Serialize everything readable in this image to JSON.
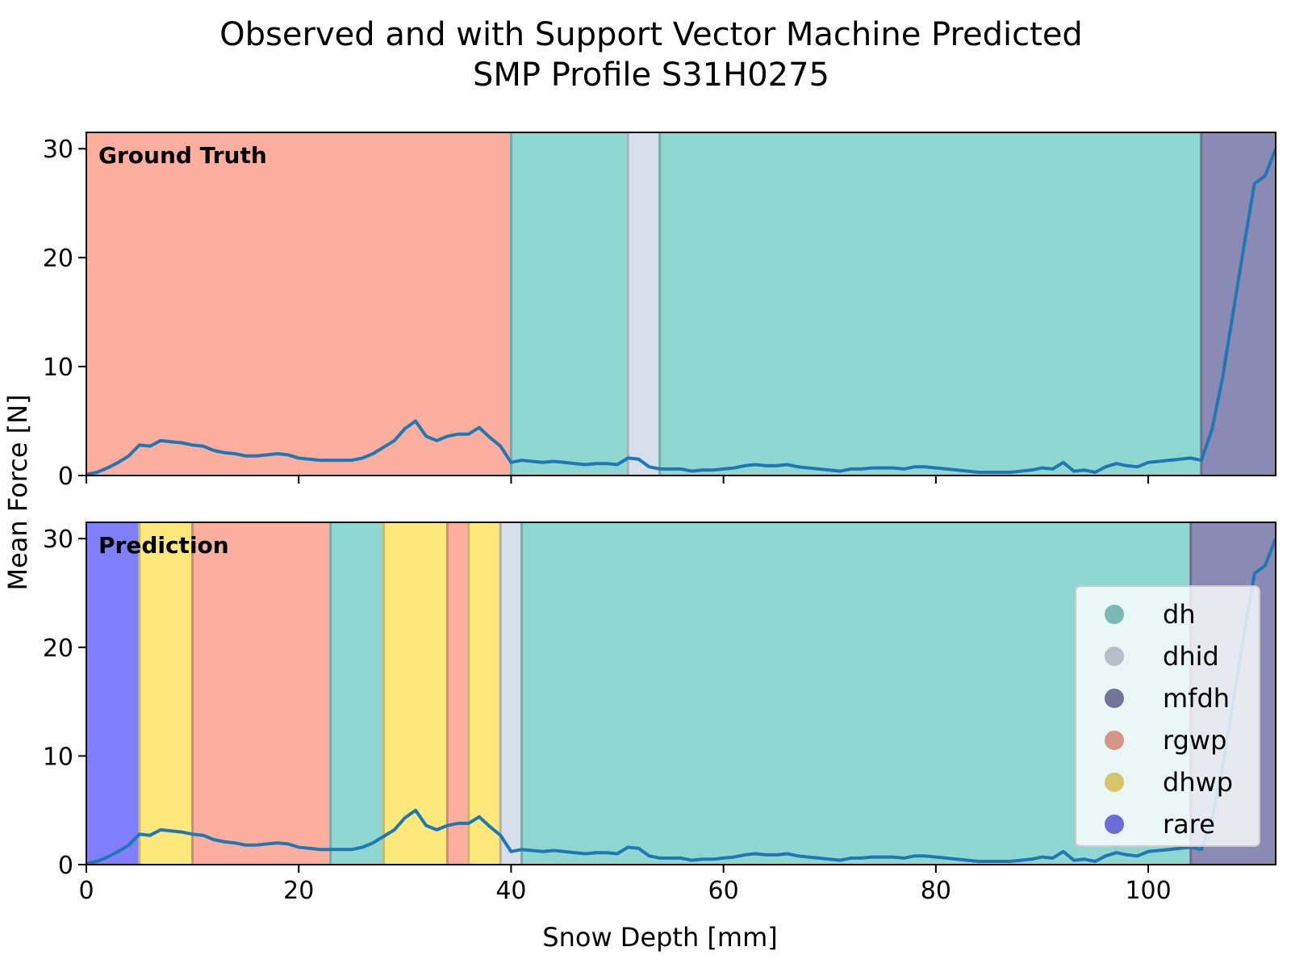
{
  "chart_data": {
    "type": "line",
    "title_line1": "Observed and with Support Vector Machine Predicted",
    "title_line2": "SMP Profile S31H0275",
    "xlabel": "Snow Depth [mm]",
    "ylabel": "Mean Force [N]",
    "xlim": [
      0,
      112
    ],
    "ylim": [
      0,
      31.5
    ],
    "xticks": [
      0,
      20,
      40,
      60,
      80,
      100
    ],
    "yticks": [
      0,
      10,
      20,
      30
    ],
    "xtick_labels": [
      "0",
      "20",
      "40",
      "60",
      "80",
      "100"
    ],
    "ytick_labels": [
      "0",
      "10",
      "20",
      "30"
    ],
    "line_color": "#1f77b4",
    "classes": [
      {
        "name": "dh",
        "color": "#8fd8d2"
      },
      {
        "name": "dhid",
        "color": "#d6dfea"
      },
      {
        "name": "mfdh",
        "color": "#8a8ab5"
      },
      {
        "name": "rgwp",
        "color": "#fcaf9e"
      },
      {
        "name": "dhwp",
        "color": "#fde87c"
      },
      {
        "name": "rare",
        "color": "#8080ff"
      }
    ],
    "legend_placement": "lower-right",
    "panels": [
      {
        "label": "Ground Truth",
        "segments": [
          {
            "start": 0,
            "end": 40,
            "cls": "rgwp"
          },
          {
            "start": 40,
            "end": 51,
            "cls": "dh"
          },
          {
            "start": 51,
            "end": 54,
            "cls": "dhid"
          },
          {
            "start": 54,
            "end": 105,
            "cls": "dh"
          },
          {
            "start": 105,
            "end": 112,
            "cls": "mfdh"
          }
        ]
      },
      {
        "label": "Prediction",
        "segments": [
          {
            "start": 0,
            "end": 5,
            "cls": "rare"
          },
          {
            "start": 5,
            "end": 10,
            "cls": "dhwp"
          },
          {
            "start": 10,
            "end": 23,
            "cls": "rgwp"
          },
          {
            "start": 23,
            "end": 28,
            "cls": "dh"
          },
          {
            "start": 28,
            "end": 34,
            "cls": "dhwp"
          },
          {
            "start": 34,
            "end": 36,
            "cls": "rgwp"
          },
          {
            "start": 36,
            "end": 39,
            "cls": "dhwp"
          },
          {
            "start": 39,
            "end": 41,
            "cls": "dhid"
          },
          {
            "start": 41,
            "end": 104,
            "cls": "dh"
          },
          {
            "start": 104,
            "end": 112,
            "cls": "mfdh"
          }
        ]
      }
    ],
    "series": [
      {
        "x": [
          0,
          1,
          2,
          3,
          4,
          5,
          6,
          7,
          8,
          9,
          10,
          11,
          12,
          13,
          14,
          15,
          16,
          17,
          18,
          19,
          20,
          21,
          22,
          23,
          24,
          25,
          26,
          27,
          28,
          29,
          30,
          31,
          32,
          33,
          34,
          35,
          36,
          37,
          38,
          39,
          40,
          41,
          42,
          43,
          44,
          45,
          46,
          47,
          48,
          49,
          50,
          51,
          52,
          53,
          54,
          55,
          56,
          57,
          58,
          59,
          60,
          61,
          62,
          63,
          64,
          65,
          66,
          67,
          68,
          69,
          70,
          71,
          72,
          73,
          74,
          75,
          76,
          77,
          78,
          79,
          80,
          81,
          82,
          83,
          84,
          85,
          86,
          87,
          88,
          89,
          90,
          91,
          92,
          93,
          94,
          95,
          96,
          97,
          98,
          99,
          100,
          101,
          102,
          103,
          104,
          105,
          106,
          107,
          108,
          109,
          110,
          111,
          112
        ],
        "y": [
          0.1,
          0.3,
          0.7,
          1.2,
          1.8,
          2.8,
          2.7,
          3.2,
          3.1,
          3.0,
          2.8,
          2.7,
          2.3,
          2.1,
          2.0,
          1.8,
          1.8,
          1.9,
          2.0,
          1.9,
          1.6,
          1.5,
          1.4,
          1.4,
          1.4,
          1.4,
          1.6,
          2.0,
          2.6,
          3.2,
          4.3,
          5.0,
          3.6,
          3.2,
          3.6,
          3.8,
          3.8,
          4.4,
          3.5,
          2.7,
          1.2,
          1.4,
          1.3,
          1.2,
          1.3,
          1.2,
          1.1,
          1.0,
          1.1,
          1.1,
          1.0,
          1.6,
          1.5,
          0.8,
          0.6,
          0.6,
          0.6,
          0.4,
          0.5,
          0.5,
          0.6,
          0.7,
          0.9,
          1.0,
          0.9,
          0.9,
          1.0,
          0.8,
          0.7,
          0.6,
          0.5,
          0.4,
          0.6,
          0.6,
          0.7,
          0.7,
          0.7,
          0.6,
          0.8,
          0.8,
          0.7,
          0.6,
          0.5,
          0.4,
          0.3,
          0.3,
          0.3,
          0.3,
          0.4,
          0.5,
          0.7,
          0.6,
          1.2,
          0.4,
          0.5,
          0.3,
          0.8,
          1.1,
          0.9,
          0.8,
          1.2,
          1.3,
          1.4,
          1.5,
          1.6,
          1.4,
          4.2,
          9.0,
          15.0,
          21.0,
          26.8,
          27.5,
          30.0
        ]
      }
    ]
  }
}
